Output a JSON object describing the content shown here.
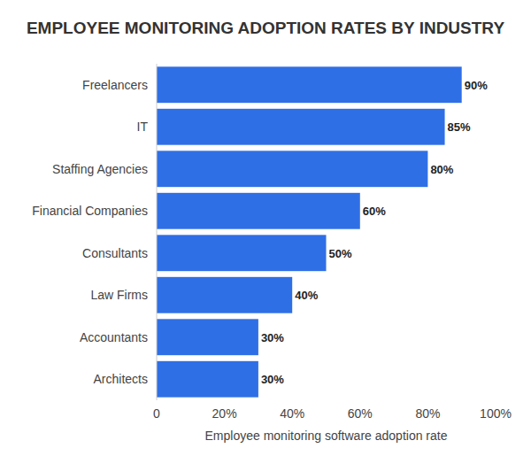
{
  "chart_data": {
    "type": "bar",
    "orientation": "horizontal",
    "title": "EMPLOYEE MONITORING ADOPTION RATES BY INDUSTRY",
    "xlabel": "Employee monitoring software adoption rate",
    "categories": [
      "Freelancers",
      "IT",
      "Staffing Agencies",
      "Financial Companies",
      "Consultants",
      "Law Firms",
      "Accountants",
      "Architects"
    ],
    "values": [
      90,
      85,
      80,
      60,
      50,
      40,
      30,
      30
    ],
    "value_labels": [
      "90%",
      "85%",
      "80%",
      "60%",
      "50%",
      "40%",
      "30%",
      "30%"
    ],
    "data_labels": true,
    "color": "#2f6fe6",
    "xlim": [
      0,
      100
    ],
    "xticks": [
      0,
      {
        "value": 20,
        "label": "20%"
      },
      {
        "value": 40,
        "label": "40%"
      },
      {
        "value": 60,
        "label": "60%"
      },
      {
        "value": 80,
        "label": "80%"
      },
      {
        "value": 100,
        "label": "100%"
      }
    ],
    "grid": false
  }
}
